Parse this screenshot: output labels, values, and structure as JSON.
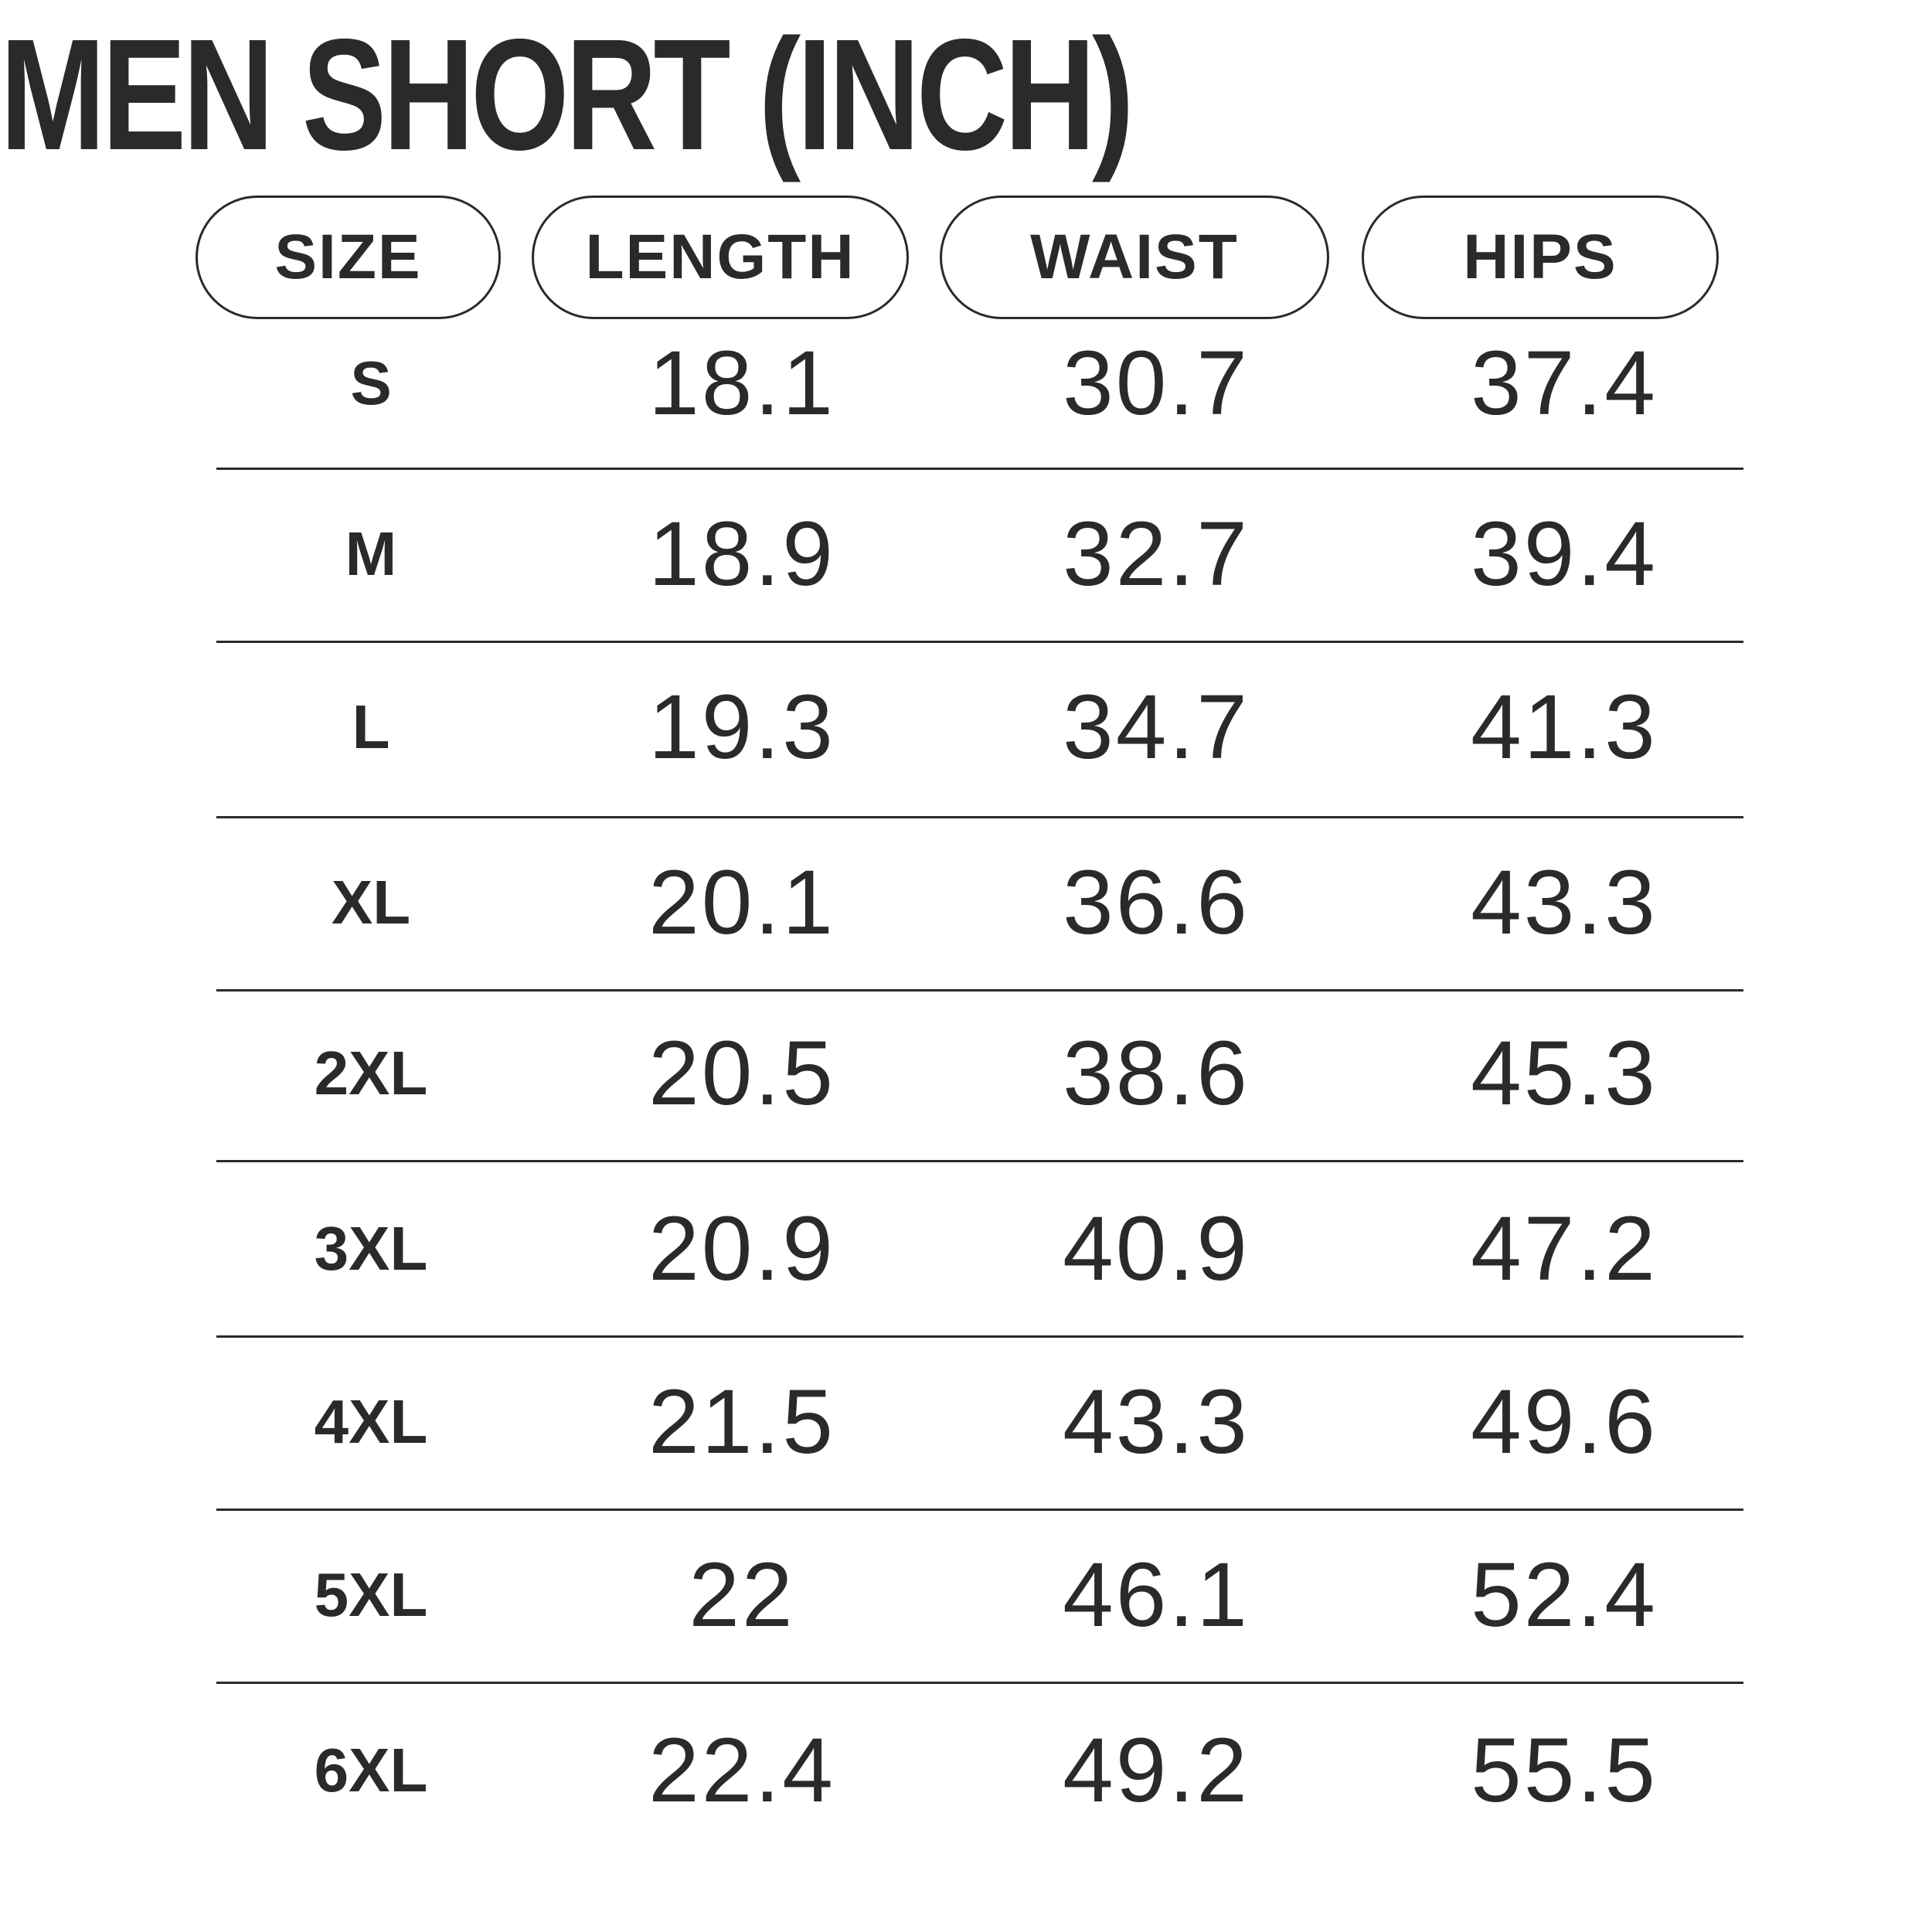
{
  "title": "MEN SHORT (INCH)",
  "headers": [
    "SIZE",
    "LENGTH",
    "WAIST",
    "HIPS"
  ],
  "rows": [
    [
      "S",
      "18.1",
      "30.7",
      "37.4"
    ],
    [
      "M",
      "18.9",
      "32.7",
      "39.4"
    ],
    [
      "L",
      "19.3",
      "34.7",
      "41.3"
    ],
    [
      "XL",
      "20.1",
      "36.6",
      "43.3"
    ],
    [
      "2XL",
      "20.5",
      "38.6",
      "45.3"
    ],
    [
      "3XL",
      "20.9",
      "40.9",
      "47.2"
    ],
    [
      "4XL",
      "21.5",
      "43.3",
      "49.6"
    ],
    [
      "5XL",
      "22",
      "46.1",
      "52.4"
    ],
    [
      "6XL",
      "22.4",
      "49.2",
      "55.5"
    ]
  ],
  "colors": {
    "text": "#2a2a2a",
    "background": "#ffffff"
  }
}
